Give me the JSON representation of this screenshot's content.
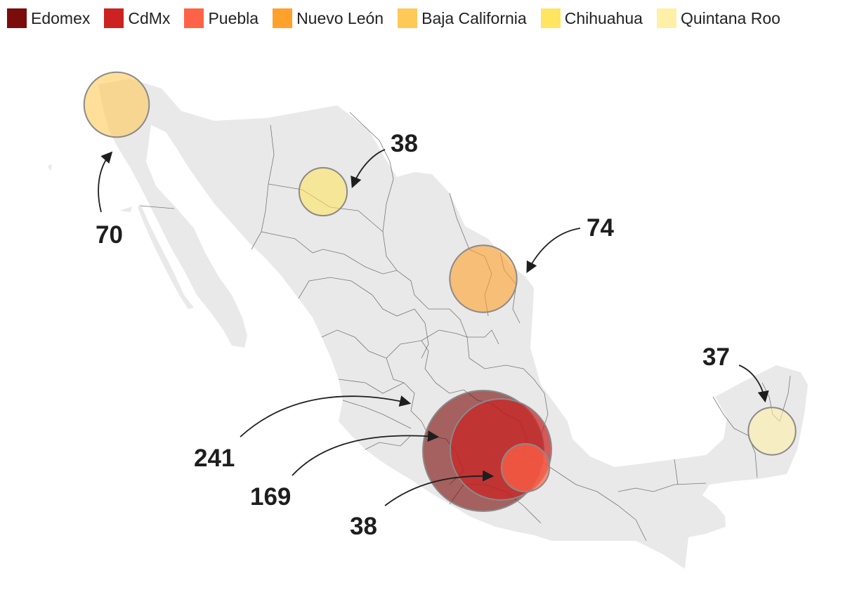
{
  "legend": [
    {
      "label": "Edomex",
      "color": "#7a0c0c"
    },
    {
      "label": "CdMx",
      "color": "#cc2222"
    },
    {
      "label": "Puebla",
      "color": "#ff6347"
    },
    {
      "label": "Nuevo León",
      "color": "#ffa12b"
    },
    {
      "label": "Baja California",
      "color": "#ffc957"
    },
    {
      "label": "Chihuahua",
      "color": "#ffe561"
    },
    {
      "label": "Quintana Roo",
      "color": "#fff0a8"
    }
  ],
  "bubbles": [
    {
      "state": "Edomex",
      "value": 241
    },
    {
      "state": "CdMx",
      "value": 169
    },
    {
      "state": "Puebla",
      "value": 38
    },
    {
      "state": "Nuevo León",
      "value": 74
    },
    {
      "state": "Baja California",
      "value": 70
    },
    {
      "state": "Chihuahua",
      "value": 38
    },
    {
      "state": "Quintana Roo",
      "value": 37
    }
  ],
  "colors": {
    "land": "#e9e9e9",
    "border": "#777777",
    "circle_stroke": "#8a8a8a"
  }
}
